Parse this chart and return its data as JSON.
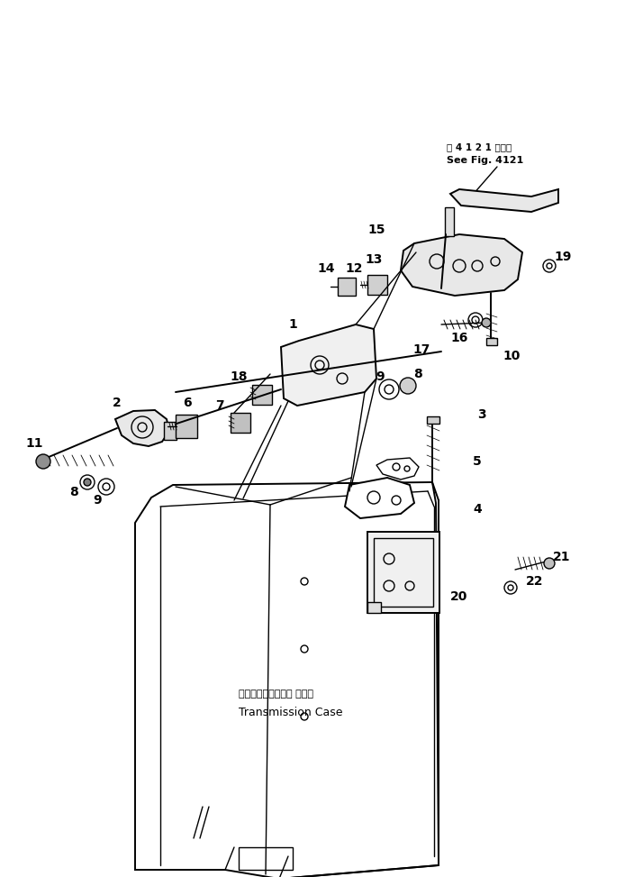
{
  "background_color": "#ffffff",
  "fig_width": 7.14,
  "fig_height": 9.73,
  "dpi": 100,
  "ref_text_line1": "第 4 1 2 1 図参照",
  "ref_text_line2": "See Fig. 4121",
  "transmission_label_line1": "トランスミッション ケース",
  "transmission_label_line2": "Transmission Case",
  "line_color": "#000000",
  "text_color": "#000000"
}
